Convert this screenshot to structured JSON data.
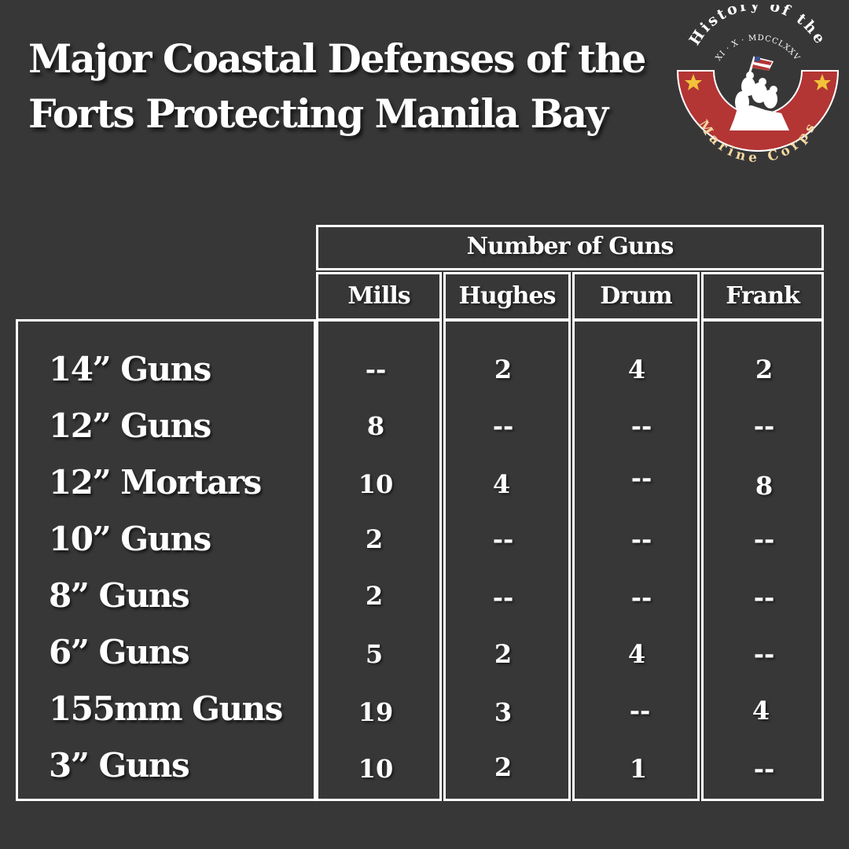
{
  "title": {
    "line1": "Major Coastal Defenses of the",
    "line2": "Forts Protecting Manila Bay"
  },
  "logo": {
    "arc_text": "History of the",
    "roman_numeral": "XI · X · MDCCLXXV",
    "bottom_text": "Marine Corps",
    "colors": {
      "ring": "#b33534",
      "star": "#f2c23a",
      "white": "#ffffff"
    }
  },
  "table": {
    "group_header": "Number of Guns",
    "columns": [
      "Mills",
      "Hughes",
      "Drum",
      "Frank"
    ],
    "rows": [
      {
        "label": "14” Guns",
        "values": [
          "--",
          "2",
          "4",
          "2"
        ]
      },
      {
        "label": "12” Guns",
        "values": [
          "8",
          "--",
          "--",
          "--"
        ]
      },
      {
        "label": "12” Mortars",
        "values": [
          "10",
          "4",
          "--",
          "8"
        ]
      },
      {
        "label": "10” Guns",
        "values": [
          "2",
          "--",
          "--",
          "--"
        ]
      },
      {
        "label": "8” Guns",
        "values": [
          "2",
          "--",
          "--",
          "--"
        ]
      },
      {
        "label": "6” Guns",
        "values": [
          "5",
          "2",
          "4",
          "--"
        ]
      },
      {
        "label": "155mm Guns",
        "values": [
          "19",
          "3",
          "--",
          "4"
        ]
      },
      {
        "label": "3” Guns",
        "values": [
          "10",
          "2",
          "1",
          "--"
        ]
      }
    ]
  },
  "colors": {
    "background": "#383738",
    "text": "#ffffff",
    "border": "#ffffff"
  }
}
